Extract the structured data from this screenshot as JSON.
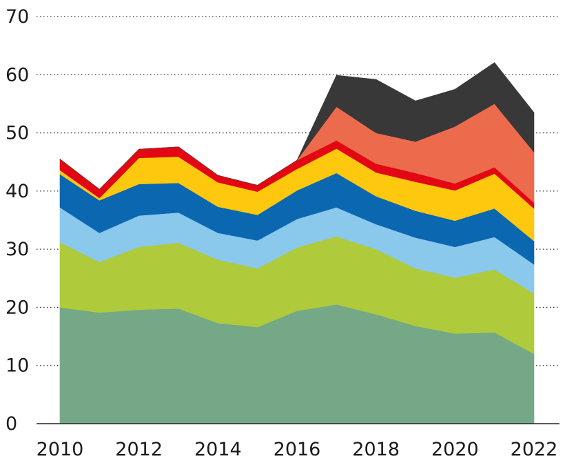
{
  "chart_data": {
    "type": "area",
    "stacked": true,
    "x": [
      2010,
      2011,
      2012,
      2013,
      2014,
      2015,
      2016,
      2017,
      2018,
      2019,
      2020,
      2021,
      2022
    ],
    "series": [
      {
        "color": "#74a887",
        "values": [
          20.0,
          19.1,
          19.6,
          19.8,
          17.3,
          16.6,
          19.4,
          20.5,
          18.8,
          16.8,
          15.5,
          15.7,
          12.0
        ]
      },
      {
        "color": "#afca3a",
        "values": [
          11.2,
          8.7,
          10.8,
          11.3,
          10.9,
          10.1,
          10.9,
          11.7,
          11.2,
          9.9,
          9.6,
          10.8,
          10.4
        ]
      },
      {
        "color": "#8ac8ec",
        "values": [
          6.0,
          5.0,
          5.4,
          5.2,
          4.6,
          4.8,
          4.9,
          5.0,
          4.3,
          5.3,
          5.3,
          5.6,
          5.0
        ]
      },
      {
        "color": "#0b67b0",
        "values": [
          5.7,
          5.6,
          5.4,
          5.1,
          4.5,
          4.4,
          4.9,
          5.9,
          4.8,
          4.6,
          4.5,
          4.9,
          4.0
        ]
      },
      {
        "color": "#fec80f",
        "values": [
          0.7,
          0.4,
          4.5,
          4.5,
          4.2,
          4.0,
          3.7,
          4.2,
          4.1,
          5.0,
          5.2,
          6.0,
          5.6
        ]
      },
      {
        "color": "#e30613",
        "values": [
          1.9,
          1.5,
          1.5,
          1.7,
          1.2,
          1.1,
          1.5,
          1.4,
          1.5,
          1.5,
          1.2,
          1.1,
          1.0
        ]
      },
      {
        "color": "#ec6b4c",
        "values": [
          0,
          0,
          0,
          0,
          0,
          0,
          0.0,
          5.8,
          5.3,
          5.4,
          9.8,
          10.9,
          8.7
        ]
      },
      {
        "color": "#383838",
        "values": [
          0,
          0,
          0,
          0,
          0,
          0,
          0.0,
          5.4,
          9.2,
          7.0,
          6.4,
          7.1,
          6.8
        ]
      }
    ],
    "ylim": [
      0,
      70
    ],
    "yticks": [
      0,
      10,
      20,
      30,
      40,
      50,
      60,
      70
    ],
    "xticks": [
      2010,
      2012,
      2014,
      2016,
      2018,
      2020,
      2022
    ],
    "grid": "horizontal dotted",
    "legend": "none",
    "title": "",
    "xlabel": "",
    "ylabel": ""
  }
}
